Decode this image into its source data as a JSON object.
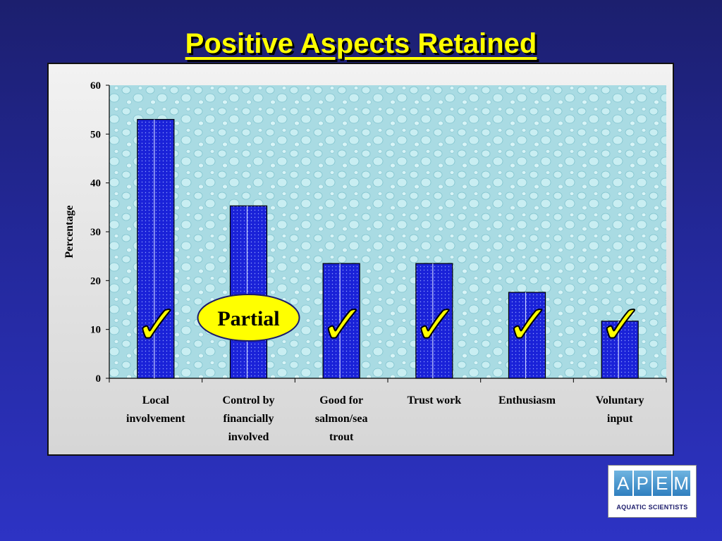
{
  "title": "Positive Aspects Retained",
  "chart_data": {
    "type": "bar",
    "categories": [
      [
        "Local",
        "involvement"
      ],
      [
        "Control by",
        "financially",
        "involved"
      ],
      [
        "Good for",
        "salmon/sea",
        "trout"
      ],
      [
        "Trust work"
      ],
      [
        "Enthusiasm"
      ],
      [
        "Voluntary",
        "input"
      ]
    ],
    "values": [
      53,
      35.3,
      23.5,
      23.5,
      17.6,
      11.7
    ],
    "ylabel": "Percentage",
    "xlabel": "",
    "ylim": [
      0,
      60
    ],
    "yticks": [
      0,
      10,
      20,
      30,
      40,
      50,
      60
    ],
    "bar_color": "#1a22d8",
    "plot_background": "#a9dbe3",
    "grid": false,
    "annotations": [
      {
        "category_index": 0,
        "type": "check"
      },
      {
        "category_index": 1,
        "type": "label",
        "text": "Partial"
      },
      {
        "category_index": 2,
        "type": "check"
      },
      {
        "category_index": 3,
        "type": "check"
      },
      {
        "category_index": 4,
        "type": "check"
      },
      {
        "category_index": 5,
        "type": "check"
      }
    ],
    "check_symbol": "✓"
  },
  "logo": {
    "letters": [
      "A",
      "P",
      "E",
      "M"
    ],
    "subtitle": "AQUATIC SCIENTISTS"
  }
}
